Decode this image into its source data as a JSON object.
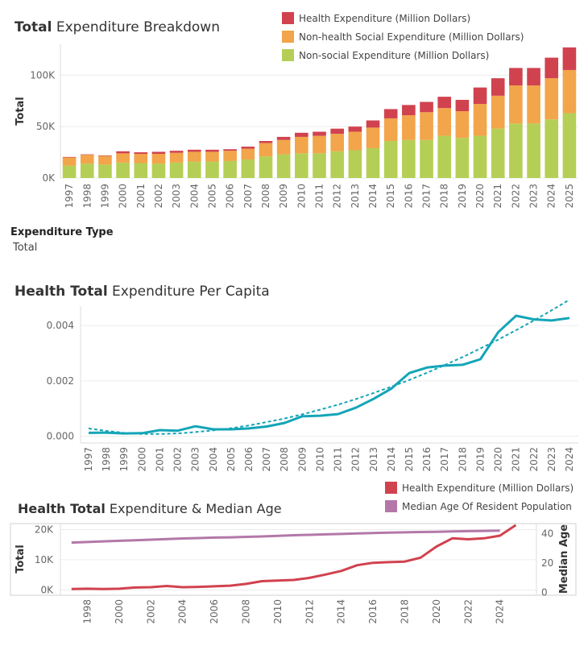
{
  "colors": {
    "health": "#d1424f",
    "nonhealth_social": "#f2a54a",
    "nonsocial": "#b5cf56",
    "teal": "#14a5b7",
    "median_age": "#b378a8",
    "grid": "#ececec",
    "axis_text": "#666666"
  },
  "filter": {
    "label": "Expenditure Type",
    "value": "Total"
  },
  "chart_data": [
    {
      "type": "bar",
      "stacked": true,
      "title_bold": "Total",
      "title_rest": " Expenditure Breakdown",
      "ylabel": "Total",
      "ylim": [
        0,
        130000
      ],
      "yticks": [
        0,
        50000,
        100000
      ],
      "ytick_labels": [
        "0K",
        "50K",
        "100K"
      ],
      "legend": [
        "Health Expenditure (Million Dollars)",
        "Non-health Social Expenditure (Million Dollars)",
        "Non-social Expenditure (Million Dollars)"
      ],
      "legend_placement": "top-right",
      "categories": [
        "1997",
        "1998",
        "1999",
        "2000",
        "2001",
        "2002",
        "2003",
        "2004",
        "2005",
        "2006",
        "2007",
        "2008",
        "2009",
        "2010",
        "2011",
        "2012",
        "2013",
        "2014",
        "2015",
        "2016",
        "2017",
        "2018",
        "2019",
        "2020",
        "2021",
        "2022",
        "2023",
        "2024",
        "2025"
      ],
      "series": [
        {
          "name": "Non-social Expenditure (Million Dollars)",
          "color_key": "nonsocial",
          "values": [
            12000,
            14000,
            13000,
            15000,
            14500,
            14000,
            15000,
            16000,
            16000,
            16500,
            18000,
            21000,
            23000,
            24000,
            24000,
            26000,
            27000,
            29000,
            36000,
            37000,
            37000,
            41000,
            39000,
            41000,
            48000,
            53000,
            53000,
            57000,
            63000
          ]
        },
        {
          "name": "Non-health Social Expenditure (Million Dollars)",
          "color_key": "nonhealth_social",
          "values": [
            8000,
            8500,
            8500,
            9000,
            9000,
            9500,
            9500,
            9500,
            9500,
            10000,
            10500,
            13000,
            14000,
            16000,
            17000,
            17000,
            18000,
            20000,
            22000,
            24000,
            27000,
            27000,
            26000,
            31000,
            32000,
            37000,
            37000,
            40000,
            42000
          ]
        },
        {
          "name": "Health Expenditure (Million Dollars)",
          "color_key": "health",
          "values": [
            500,
            500,
            500,
            2000,
            1500,
            2000,
            2000,
            2000,
            2000,
            1500,
            2000,
            2000,
            3000,
            4000,
            4000,
            5000,
            5000,
            7000,
            9000,
            10000,
            10000,
            11000,
            11000,
            16000,
            17000,
            17000,
            17000,
            20000,
            22000
          ]
        }
      ]
    },
    {
      "type": "line",
      "title_bold": "Health Total",
      "title_rest": " Expenditure Per Capita",
      "ylim": [
        -0.0001,
        0.0047
      ],
      "yticks": [
        0,
        0.002,
        0.004
      ],
      "ytick_labels": [
        "0.000",
        "0.002",
        "0.004"
      ],
      "categories": [
        "1997",
        "1998",
        "1999",
        "2000",
        "2001",
        "2002",
        "2003",
        "2004",
        "2005",
        "2006",
        "2007",
        "2008",
        "2009",
        "2010",
        "2011",
        "2012",
        "2013",
        "2014",
        "2015",
        "2016",
        "2017",
        "2018",
        "2019",
        "2020",
        "2021",
        "2022",
        "2023",
        "2024"
      ],
      "series": [
        {
          "name": "Health Total",
          "color_key": "teal",
          "values": [
            0.00012,
            0.00013,
            0.0001,
            0.00011,
            0.00022,
            0.0002,
            0.00036,
            0.00025,
            0.00025,
            0.00028,
            0.00035,
            0.00048,
            0.00072,
            0.00074,
            0.0008,
            0.00103,
            0.00135,
            0.00172,
            0.00228,
            0.00248,
            0.00255,
            0.00258,
            0.00278,
            0.00376,
            0.00435,
            0.00422,
            0.00418,
            0.00427
          ]
        },
        {
          "name": "Trend",
          "style": "dashed",
          "color_key": "teal",
          "values": [
            0.00028,
            0.00019,
            0.00012,
            8e-05,
            8e-05,
            0.0001,
            0.00015,
            0.00021,
            0.00029,
            0.00039,
            0.00051,
            0.00064,
            0.00079,
            0.00096,
            0.00114,
            0.00134,
            0.00156,
            0.00179,
            0.00203,
            0.00229,
            0.00257,
            0.00286,
            0.00317,
            0.00349,
            0.00383,
            0.00418,
            0.00455,
            0.00493
          ]
        }
      ]
    },
    {
      "type": "line",
      "dual_axis": true,
      "title_bold": "Health Total",
      "title_rest": " Expenditure & Median Age",
      "ylabel": "Total",
      "ylabel_right": "Median Age",
      "ylim": [
        -1500,
        22000
      ],
      "yticks": [
        0,
        10000,
        20000
      ],
      "ytick_labels": [
        "0K",
        "10K",
        "20K"
      ],
      "ylim_right": [
        -1.5,
        47
      ],
      "yticks_right": [
        0,
        20,
        40
      ],
      "ytick_labels_right": [
        "0",
        "20",
        "40"
      ],
      "legend": [
        "Health Expenditure (Million Dollars)",
        "Median Age Of Resident Population"
      ],
      "legend_placement": "top-right",
      "x_range": [
        1996.3,
        2026.3
      ],
      "xticks": [
        "1998",
        "2000",
        "2002",
        "2004",
        "2006",
        "2008",
        "2010",
        "2012",
        "2014",
        "2016",
        "2018",
        "2020",
        "2022",
        "2024"
      ],
      "series": [
        {
          "name": "Health Expenditure (Million Dollars)",
          "color_key": "health",
          "axis": "left",
          "x": [
            1997,
            1998,
            1999,
            2000,
            2001,
            2002,
            2003,
            2004,
            2005,
            2006,
            2007,
            2008,
            2009,
            2010,
            2011,
            2012,
            2013,
            2014,
            2015,
            2016,
            2017,
            2018,
            2019,
            2020,
            2021,
            2022,
            2023,
            2024,
            2025
          ],
          "values": [
            300,
            400,
            300,
            400,
            800,
            900,
            1300,
            900,
            1000,
            1200,
            1400,
            2000,
            2900,
            3100,
            3300,
            4000,
            5100,
            6300,
            8200,
            9000,
            9200,
            9400,
            10700,
            14400,
            17100,
            16800,
            17100,
            18000,
            21500
          ]
        },
        {
          "name": "Median Age Of Resident Population",
          "color_key": "median_age",
          "axis": "right",
          "x": [
            1997,
            1998,
            1999,
            2000,
            2001,
            2002,
            2003,
            2004,
            2005,
            2006,
            2007,
            2008,
            2009,
            2010,
            2011,
            2012,
            2013,
            2014,
            2015,
            2016,
            2017,
            2018,
            2019,
            2020,
            2021,
            2022,
            2023,
            2024
          ],
          "values": [
            34.0,
            34.4,
            34.8,
            35.2,
            35.6,
            36.0,
            36.4,
            36.8,
            37.1,
            37.4,
            37.6,
            37.9,
            38.2,
            38.6,
            39.0,
            39.3,
            39.6,
            39.9,
            40.2,
            40.5,
            40.8,
            41.0,
            41.2,
            41.4,
            41.6,
            41.8,
            42.0,
            42.2
          ]
        }
      ]
    }
  ]
}
